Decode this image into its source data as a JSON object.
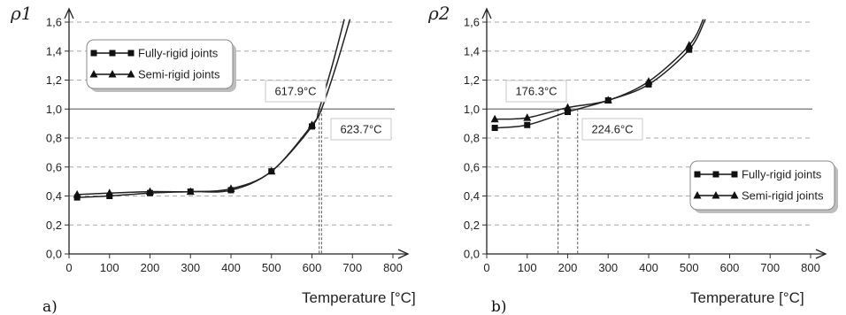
{
  "chart_data": [
    {
      "type": "line",
      "panel_label": "a)",
      "ylabel": "ρ1",
      "xlabel": "Temperature [°C]",
      "xlim": [
        0,
        800
      ],
      "ylim": [
        0,
        1.6
      ],
      "xticks": [
        "0",
        "100",
        "200",
        "300",
        "400",
        "500",
        "600",
        "700",
        "800"
      ],
      "yticks": [
        "0,0",
        "0,2",
        "0,4",
        "0,6",
        "0,8",
        "1,0",
        "1,2",
        "1,4",
        "1,6"
      ],
      "grid": "horizontal dashed",
      "legend": {
        "placement": "top-left"
      },
      "reference_line_y": 1.0,
      "series": [
        {
          "name": "Fully-rigid joints",
          "marker": "square",
          "x": [
            20,
            100,
            200,
            300,
            400,
            500,
            600,
            617.9,
            650,
            680
          ],
          "y": [
            0.39,
            0.4,
            0.42,
            0.43,
            0.44,
            0.57,
            0.88,
            1.0,
            1.3,
            1.62
          ]
        },
        {
          "name": "Semi-rigid joints",
          "marker": "triangle",
          "x": [
            20,
            100,
            200,
            300,
            400,
            500,
            600,
            623.7,
            660,
            694
          ],
          "y": [
            0.41,
            0.42,
            0.43,
            0.43,
            0.45,
            0.57,
            0.89,
            1.0,
            1.3,
            1.62
          ]
        }
      ],
      "annotations": [
        {
          "text": "617.9°C",
          "x": 617.9
        },
        {
          "text": "623.7°C",
          "x": 623.7
        }
      ]
    },
    {
      "type": "line",
      "panel_label": "b)",
      "ylabel": "ρ2",
      "xlabel": "Temperature [°C]",
      "xlim": [
        0,
        800
      ],
      "ylim": [
        0,
        1.6
      ],
      "xticks": [
        "0",
        "100",
        "200",
        "300",
        "400",
        "500",
        "600",
        "700",
        "800"
      ],
      "yticks": [
        "0,0",
        "0,2",
        "0,4",
        "0,6",
        "0,8",
        "1,0",
        "1,2",
        "1,4",
        "1,6"
      ],
      "grid": "horizontal dashed",
      "legend": {
        "placement": "bottom-right"
      },
      "reference_line_y": 1.0,
      "series": [
        {
          "name": "Fully-rigid joints",
          "marker": "square",
          "x": [
            20,
            100,
            200,
            300,
            400,
            500,
            540
          ],
          "y": [
            0.87,
            0.89,
            0.98,
            1.06,
            1.17,
            1.41,
            1.62
          ]
        },
        {
          "name": "Semi-rigid joints",
          "marker": "triangle",
          "x": [
            20,
            100,
            200,
            300,
            400,
            500,
            535
          ],
          "y": [
            0.93,
            0.94,
            1.01,
            1.06,
            1.19,
            1.44,
            1.62
          ]
        }
      ],
      "annotations": [
        {
          "text": "176.3°C",
          "x": 176.3
        },
        {
          "text": "224.6°C",
          "x": 224.6
        }
      ]
    }
  ]
}
